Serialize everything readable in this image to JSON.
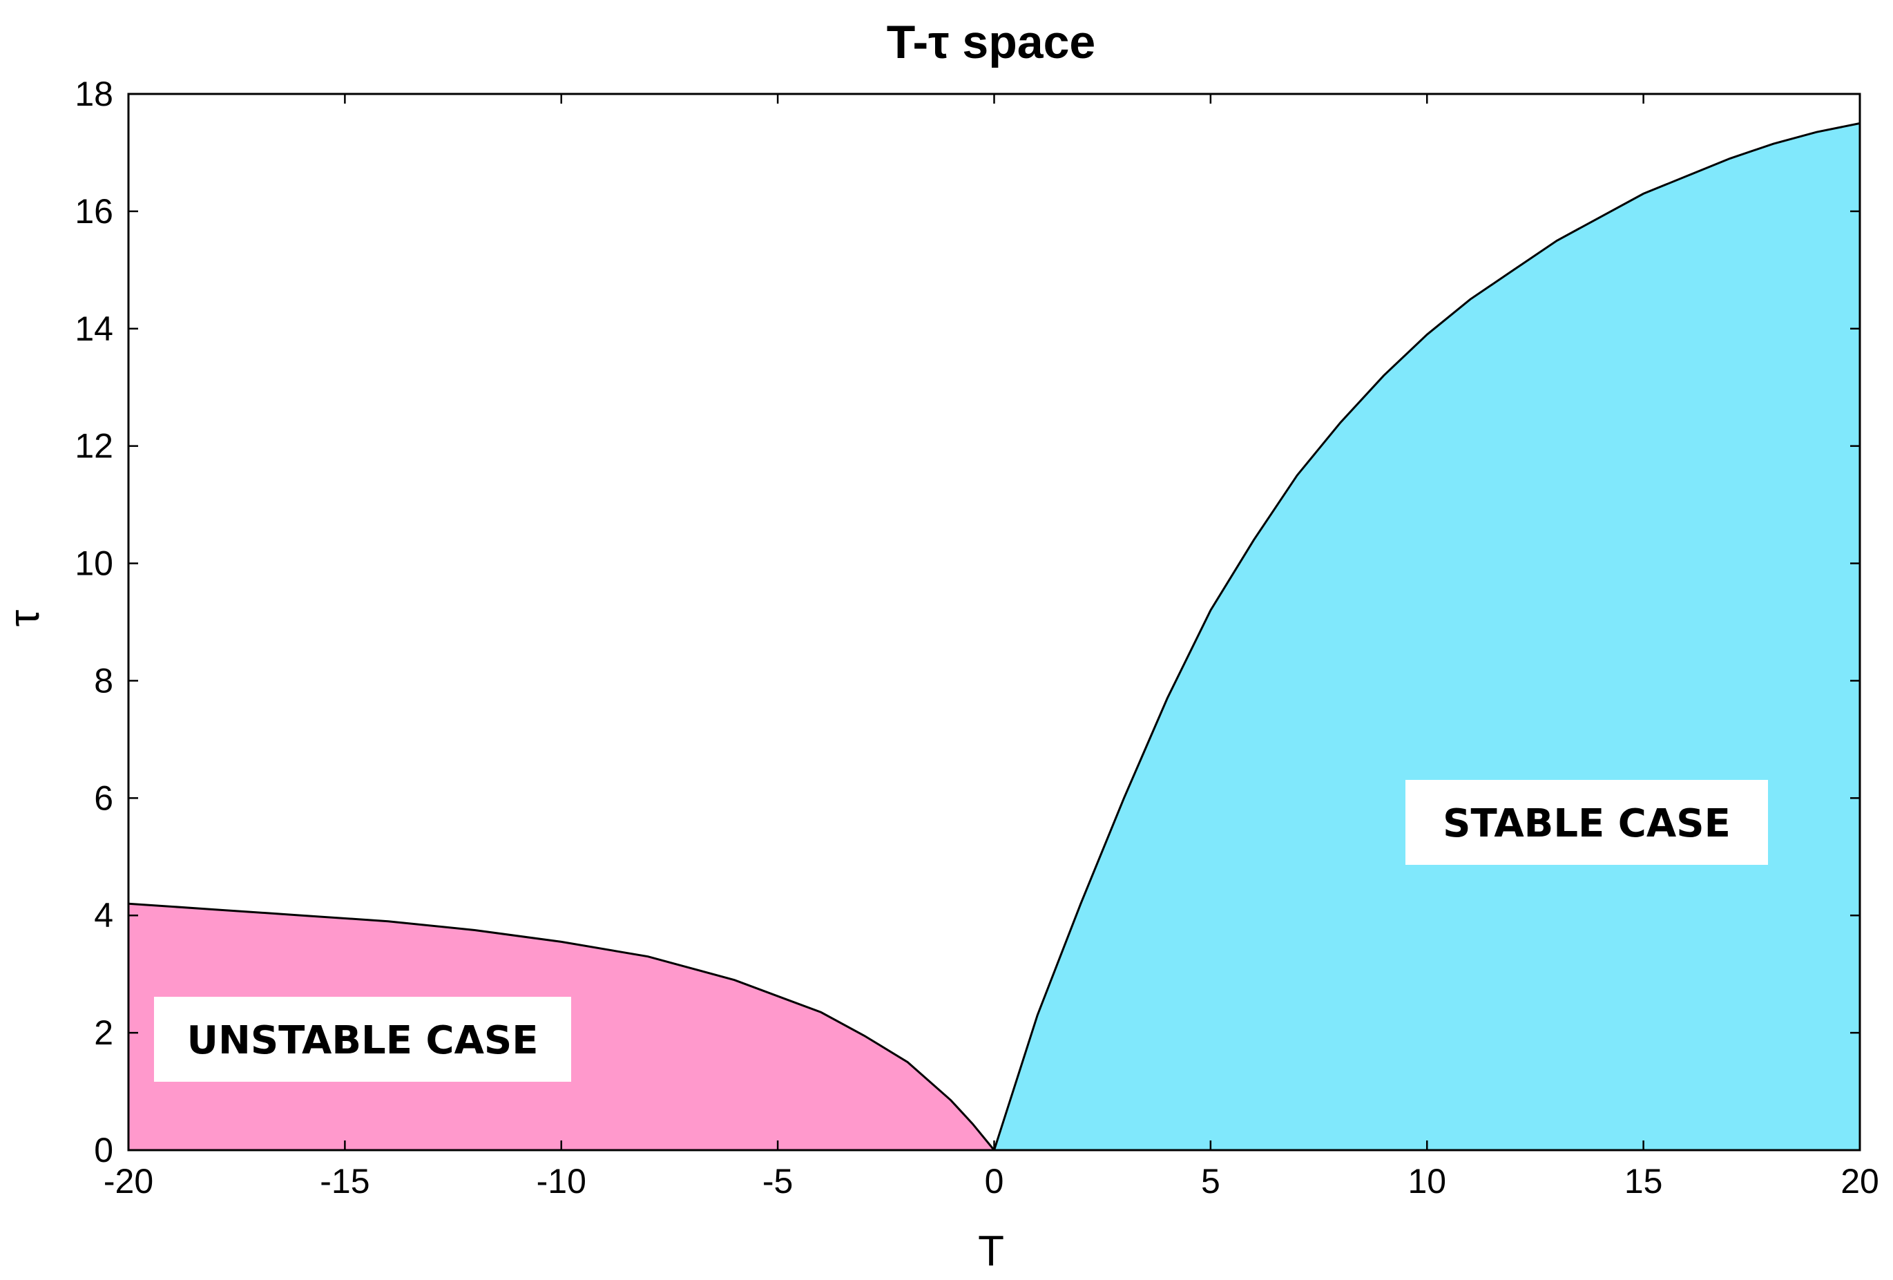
{
  "chart_data": {
    "type": "area",
    "title": "T-τ space",
    "xlabel": "T",
    "ylabel": "τ",
    "xlim": [
      -20,
      20
    ],
    "ylim": [
      0,
      18
    ],
    "x_ticks": [
      -20,
      -15,
      -10,
      -5,
      0,
      5,
      10,
      15,
      20
    ],
    "x_tick_labels": [
      "-20",
      "-15",
      "-10",
      "-5",
      "0",
      "5",
      "10",
      "15",
      "20"
    ],
    "y_ticks": [
      0,
      2,
      4,
      6,
      8,
      10,
      12,
      14,
      16,
      18
    ],
    "y_tick_labels": [
      "0",
      "2",
      "4",
      "6",
      "8",
      "10",
      "12",
      "14",
      "16",
      "18"
    ],
    "grid": false,
    "series": [
      {
        "color": "#ff99cc",
        "x": [
          -20,
          -18,
          -16,
          -14,
          -12,
          -10,
          -8,
          -6,
          -4,
          -3,
          -2,
          -1,
          -0.5,
          0
        ],
        "y": [
          4.2,
          4.1,
          4.0,
          3.9,
          3.75,
          3.55,
          3.3,
          2.9,
          2.35,
          1.95,
          1.5,
          0.85,
          0.45,
          0
        ]
      },
      {
        "color": "#80e8fc",
        "x": [
          0,
          1,
          2,
          3,
          4,
          5,
          6,
          7,
          8,
          9,
          10,
          11,
          12,
          13,
          14,
          15,
          16,
          17,
          18,
          19,
          20
        ],
        "y": [
          0,
          2.3,
          4.2,
          6.0,
          7.7,
          9.2,
          10.4,
          11.5,
          12.4,
          13.2,
          13.9,
          14.5,
          15.0,
          15.5,
          15.9,
          16.3,
          16.6,
          16.9,
          17.15,
          17.35,
          17.5
        ]
      }
    ],
    "annotations": [
      {
        "text": "UNSTABLE CASE"
      },
      {
        "text": "STABLE CASE"
      }
    ]
  }
}
